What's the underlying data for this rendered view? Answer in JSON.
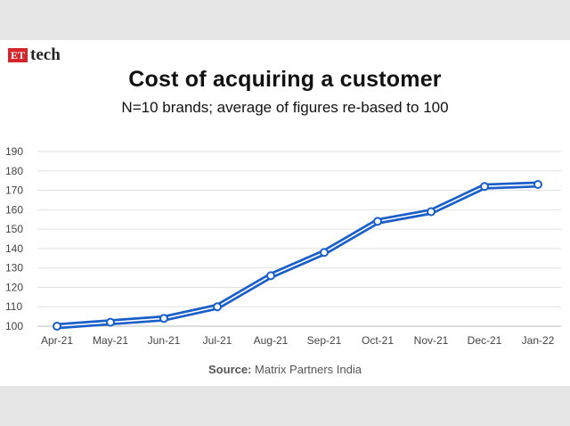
{
  "brand": {
    "et": "ET",
    "tech": "tech"
  },
  "chart_data": {
    "type": "line",
    "title": "Cost of acquiring a customer",
    "subtitle": "N=10 brands; average of figures re-based to 100",
    "categories": [
      "Apr-21",
      "May-21",
      "Jun-21",
      "Jul-21",
      "Aug-21",
      "Sep-21",
      "Oct-21",
      "Nov-21",
      "Dec-21",
      "Jan-22"
    ],
    "series": [
      {
        "values": [
          100,
          102,
          104,
          110,
          126,
          138,
          154,
          159,
          172,
          173
        ]
      }
    ],
    "ylim": [
      100,
      190
    ],
    "yticks": [
      100,
      110,
      120,
      130,
      140,
      150,
      160,
      170,
      180,
      190
    ],
    "grid": true,
    "line_color": "#1a5fc9",
    "source_label": "Source:",
    "source_text": "Matrix Partners India"
  }
}
